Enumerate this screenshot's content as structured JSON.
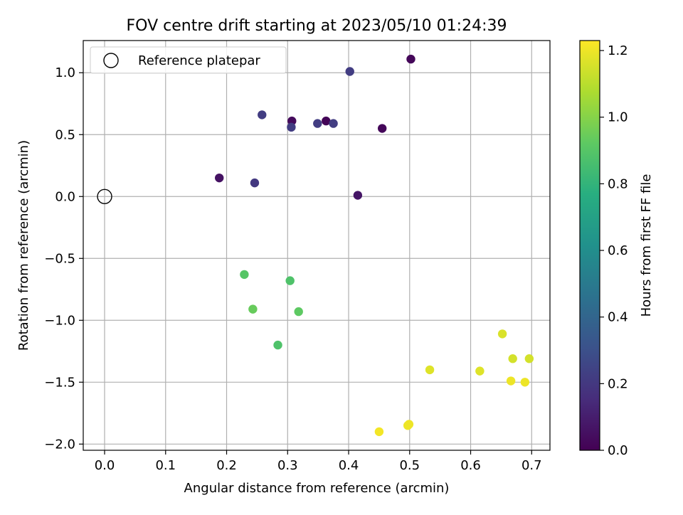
{
  "chart_data": {
    "type": "scatter",
    "title": "FOV centre drift starting at 2023/05/10 01:24:39",
    "xlabel": "Angular distance from reference (arcmin)",
    "ylabel": "Rotation from reference (arcmin)",
    "xlim": [
      -0.035,
      0.73
    ],
    "ylim": [
      -2.05,
      1.26
    ],
    "xticks": [
      0.0,
      0.1,
      0.2,
      0.3,
      0.4,
      0.5,
      0.6,
      0.7
    ],
    "xtick_labels": [
      "0.0",
      "0.1",
      "0.2",
      "0.3",
      "0.4",
      "0.5",
      "0.6",
      "0.7"
    ],
    "yticks": [
      1.0,
      0.5,
      0.0,
      -0.5,
      -1.0,
      -1.5,
      -2.0
    ],
    "ytick_labels": [
      "1.0",
      "0.5",
      "0.0",
      "−0.5",
      "−1.0",
      "−1.5",
      "−2.0"
    ],
    "grid": true,
    "legend": {
      "position": "upper-left",
      "label": "Reference platepar"
    },
    "reference_point": {
      "x": 0.0,
      "y": 0.0
    },
    "colorbar": {
      "label": "Hours from first FF file",
      "colormap": "viridis",
      "range": [
        0.0,
        1.23
      ],
      "ticks": [
        0.0,
        0.2,
        0.4,
        0.6,
        0.8,
        1.0,
        1.2
      ],
      "tick_labels": [
        "0.0",
        "0.2",
        "0.4",
        "0.6",
        "0.8",
        "1.0",
        "1.2"
      ]
    },
    "points": [
      {
        "x": 0.502,
        "y": 1.11,
        "c": 0.02
      },
      {
        "x": 0.402,
        "y": 1.01,
        "c": 0.22
      },
      {
        "x": 0.258,
        "y": 0.66,
        "c": 0.22
      },
      {
        "x": 0.307,
        "y": 0.61,
        "c": 0.03
      },
      {
        "x": 0.363,
        "y": 0.61,
        "c": 0.01
      },
      {
        "x": 0.306,
        "y": 0.56,
        "c": 0.22
      },
      {
        "x": 0.349,
        "y": 0.59,
        "c": 0.22
      },
      {
        "x": 0.375,
        "y": 0.59,
        "c": 0.22
      },
      {
        "x": 0.455,
        "y": 0.55,
        "c": 0.02
      },
      {
        "x": 0.188,
        "y": 0.15,
        "c": 0.06
      },
      {
        "x": 0.246,
        "y": 0.11,
        "c": 0.2
      },
      {
        "x": 0.415,
        "y": 0.01,
        "c": 0.07
      },
      {
        "x": 0.229,
        "y": -0.63,
        "c": 0.9
      },
      {
        "x": 0.304,
        "y": -0.68,
        "c": 0.88
      },
      {
        "x": 0.243,
        "y": -0.91,
        "c": 0.94
      },
      {
        "x": 0.318,
        "y": -0.93,
        "c": 0.92
      },
      {
        "x": 0.284,
        "y": -1.2,
        "c": 0.88
      },
      {
        "x": 0.652,
        "y": -1.11,
        "c": 1.16
      },
      {
        "x": 0.669,
        "y": -1.31,
        "c": 1.15
      },
      {
        "x": 0.696,
        "y": -1.31,
        "c": 1.15
      },
      {
        "x": 0.533,
        "y": -1.4,
        "c": 1.17
      },
      {
        "x": 0.615,
        "y": -1.41,
        "c": 1.17
      },
      {
        "x": 0.666,
        "y": -1.49,
        "c": 1.2
      },
      {
        "x": 0.689,
        "y": -1.5,
        "c": 1.2
      },
      {
        "x": 0.45,
        "y": -1.9,
        "c": 1.21
      },
      {
        "x": 0.497,
        "y": -1.85,
        "c": 1.2
      },
      {
        "x": 0.499,
        "y": -1.84,
        "c": 1.2
      }
    ]
  }
}
